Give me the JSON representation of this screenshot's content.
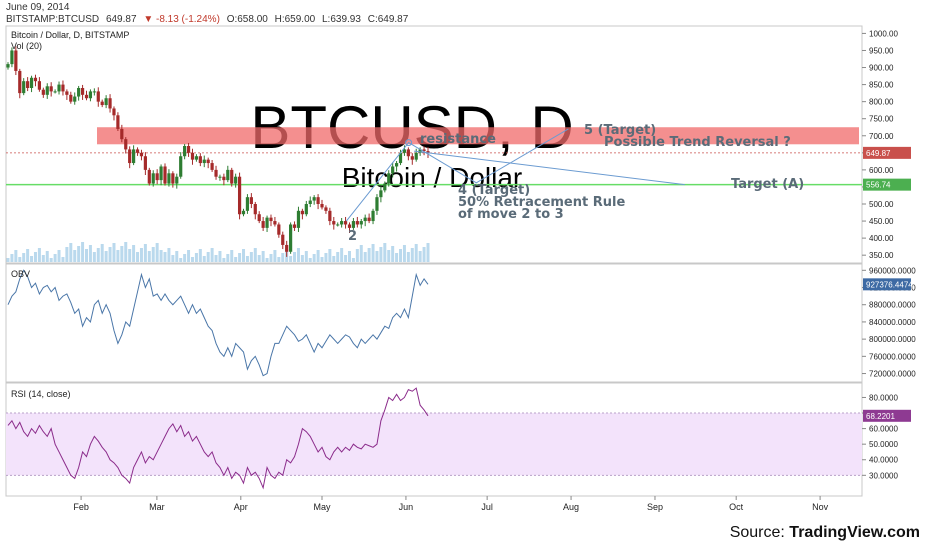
{
  "header": {
    "date": "June 09, 2014",
    "symbol": "BITSTAMP:BTCUSD",
    "last": "649.87",
    "change": "▼ -8.13 (-1.24%)",
    "open": "O:658.00",
    "high": "H:659.00",
    "low": "L:639.93",
    "close": "C:649.87"
  },
  "source": {
    "prefix": "Source:",
    "brand": "TradingView.com"
  },
  "colors": {
    "up": "#2e7d32",
    "down": "#a52a2a",
    "resistance_zone": "#f06a6a",
    "support_line": "#66dd66",
    "wave_line": "#6b9bd1",
    "obv_line": "#4a76a8",
    "rsi_line": "#8b2c8b",
    "rsi_band": "#f3e3fb",
    "volume": "#a9cfe8",
    "watermark": "#e6e6e6",
    "annotation_text": "#5a6b78",
    "obv_tag": "#3d6aa4",
    "rsi_tag": "#8e3a92",
    "price_tag": "#c9504c",
    "support_tag": "#4caf50"
  },
  "chart_data": [
    {
      "type": "candlestick",
      "title": "Bitcoin / Dollar, D, BITSTAMP",
      "watermark": [
        "BTCUSD, D",
        "Bitcoin / Dollar"
      ],
      "volume_label": "Vol (20)",
      "x_ticks": [
        "Feb",
        "Mar",
        "Apr",
        "May",
        "Jun",
        "Jul",
        "Aug",
        "Sep",
        "Oct",
        "Nov"
      ],
      "y_ticks": [
        "1000.00",
        "950.00",
        "900.00",
        "850.00",
        "800.00",
        "750.00",
        "700.00",
        "650.00",
        "600.00",
        "550.00",
        "500.00",
        "450.00",
        "400.00",
        "350.00"
      ],
      "ylim": [
        330,
        1010
      ],
      "start_date": "2014-01-05",
      "close": [
        910,
        950,
        890,
        825,
        860,
        840,
        870,
        860,
        835,
        820,
        845,
        830,
        830,
        850,
        830,
        820,
        800,
        815,
        840,
        820,
        810,
        830,
        830,
        800,
        790,
        810,
        780,
        760,
        720,
        690,
        660,
        620,
        660,
        650,
        640,
        600,
        560,
        590,
        570,
        610,
        560,
        590,
        560,
        580,
        640,
        670,
        650,
        630,
        640,
        620,
        630,
        620,
        600,
        580,
        580,
        570,
        600,
        560,
        580,
        470,
        480,
        520,
        500,
        470,
        450,
        430,
        460,
        450,
        440,
        410,
        380,
        360,
        440,
        430,
        480,
        470,
        500,
        510,
        520,
        500,
        490,
        480,
        450,
        440,
        440,
        450,
        440,
        430,
        450,
        440,
        450,
        460,
        450,
        480,
        520,
        540,
        560,
        590,
        610,
        620,
        650,
        660,
        640,
        630,
        650,
        660,
        655,
        649.87
      ],
      "price_tag": "649.87",
      "support_tag": "556.74",
      "resistance_zone": [
        675,
        725
      ],
      "support_level": 556.74,
      "labels": {
        "wave2": "2",
        "resistance": "resistance",
        "wave4": "4 (Target)",
        "retracement": "50% Retracement Rule",
        "move": "of move 2 to 3",
        "wave5": "5 (Target)",
        "reversal": "Possible Trend Reversal ?",
        "targetA": "Target (A)"
      }
    },
    {
      "type": "line",
      "title": "OBV",
      "y_ticks": [
        "960000.0000",
        "920000.0000",
        "880000.0000",
        "840000.0000",
        "800000.0000",
        "760000.0000",
        "720000.0000"
      ],
      "ylim": [
        705000,
        970000
      ],
      "last_tag": "927376.4474",
      "values": [
        880000,
        900000,
        910000,
        940000,
        960000,
        945000,
        920000,
        930000,
        905000,
        920000,
        925000,
        910000,
        920000,
        890000,
        900000,
        905000,
        885000,
        860000,
        870000,
        830000,
        850000,
        840000,
        880000,
        890000,
        860000,
        880000,
        860000,
        820000,
        790000,
        810000,
        840000,
        830000,
        870000,
        910000,
        950000,
        920000,
        940000,
        900000,
        905000,
        890000,
        905000,
        890000,
        880000,
        890000,
        900000,
        880000,
        860000,
        880000,
        860000,
        870000,
        850000,
        830000,
        820000,
        790000,
        770000,
        760000,
        780000,
        760000,
        790000,
        780000,
        770000,
        730000,
        750000,
        760000,
        740000,
        715000,
        720000,
        760000,
        790000,
        790000,
        810000,
        830000,
        820000,
        810000,
        795000,
        800000,
        810000,
        790000,
        770000,
        790000,
        780000,
        795000,
        810000,
        800000,
        790000,
        800000,
        810000,
        805000,
        790000,
        780000,
        800000,
        790000,
        800000,
        810000,
        800000,
        815000,
        830000,
        825000,
        850000,
        860000,
        850000,
        870000,
        850000,
        900000,
        950000,
        925000,
        940000,
        927376
      ]
    },
    {
      "type": "line",
      "title": "RSI (14, close)",
      "y_ticks": [
        "80.0000",
        "70.0000",
        "60.0000",
        "50.0000",
        "40.0000",
        "30.0000"
      ],
      "ylim": [
        18,
        88
      ],
      "band": [
        30,
        70
      ],
      "last_tag": "68.2201",
      "values": [
        62,
        65,
        60,
        64,
        58,
        55,
        60,
        57,
        62,
        58,
        55,
        60,
        50,
        45,
        40,
        35,
        30,
        28,
        35,
        45,
        42,
        50,
        55,
        52,
        48,
        45,
        40,
        38,
        35,
        30,
        28,
        25,
        35,
        40,
        45,
        38,
        42,
        40,
        45,
        50,
        55,
        60,
        63,
        58,
        62,
        55,
        58,
        52,
        55,
        50,
        45,
        42,
        45,
        38,
        35,
        30,
        35,
        28,
        32,
        30,
        25,
        35,
        30,
        32,
        28,
        22,
        35,
        30,
        28,
        32,
        30,
        40,
        38,
        42,
        50,
        60,
        58,
        55,
        50,
        45,
        48,
        42,
        40,
        45,
        48,
        45,
        48,
        46,
        50,
        48,
        47,
        50,
        49,
        48,
        50,
        65,
        72,
        80,
        78,
        82,
        78,
        80,
        85,
        84,
        86,
        75,
        72,
        68.22
      ]
    }
  ]
}
